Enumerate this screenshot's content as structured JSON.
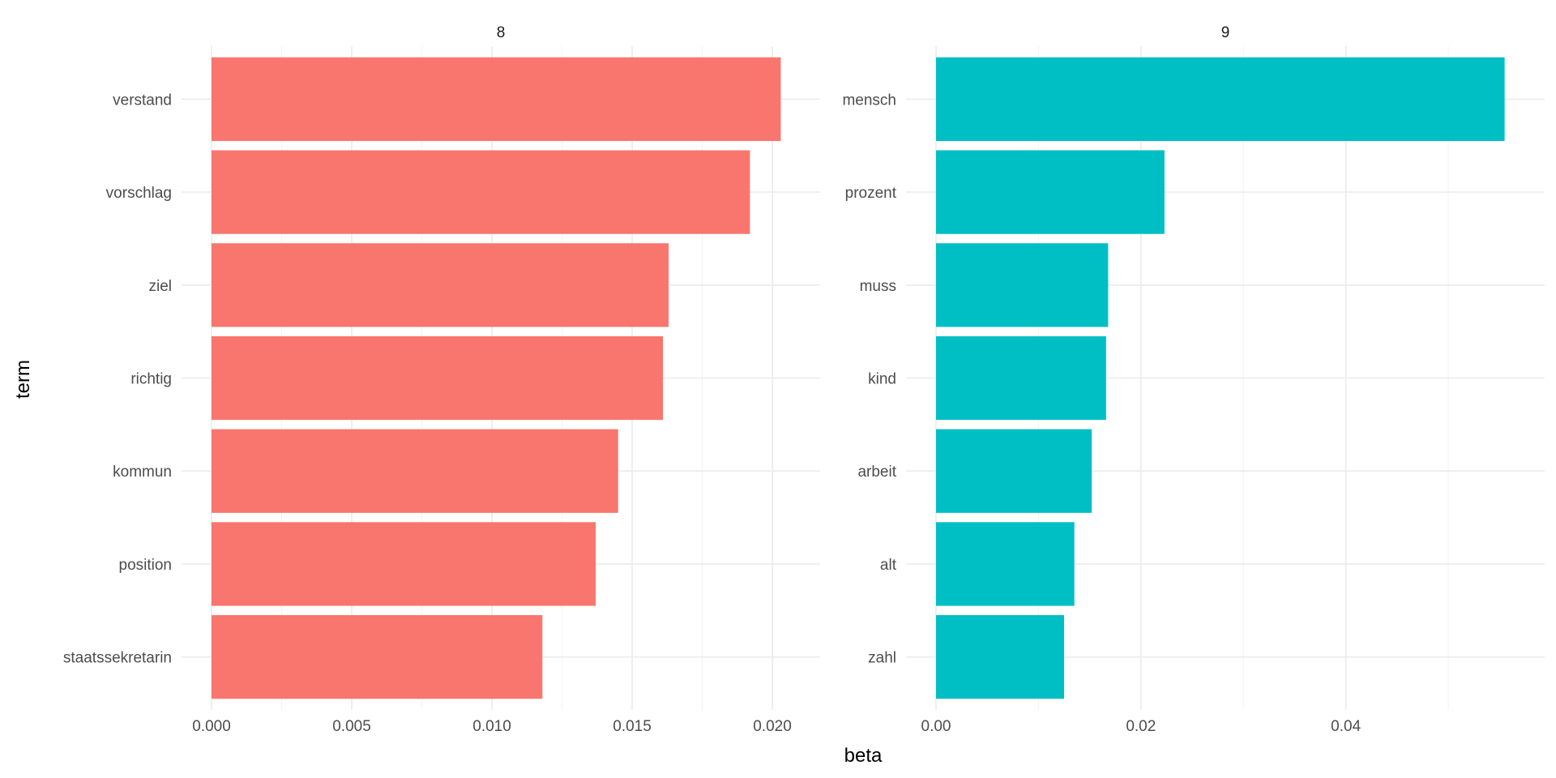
{
  "chart_data": {
    "type": "bar",
    "orientation": "horizontal",
    "xlabel": "beta",
    "ylabel": "term",
    "grid": true,
    "facets": [
      {
        "label": "8",
        "color": "#F8766D",
        "categories": [
          "verstand",
          "vorschlag",
          "ziel",
          "richtig",
          "kommun",
          "position",
          "staatssekretarin"
        ],
        "values": [
          0.0203,
          0.0192,
          0.0163,
          0.0161,
          0.0145,
          0.0137,
          0.0118
        ],
        "xlim": [
          0,
          0.0213
        ],
        "xticks": [
          0.0,
          0.005,
          0.01,
          0.015,
          0.02
        ],
        "xtick_labels": [
          "0.000",
          "0.005",
          "0.010",
          "0.015",
          "0.020"
        ]
      },
      {
        "label": "9",
        "color": "#00BFC4",
        "categories": [
          "mensch",
          "prozent",
          "muss",
          "kind",
          "arbeit",
          "alt",
          "zahl"
        ],
        "values": [
          0.0555,
          0.0223,
          0.0168,
          0.0166,
          0.0152,
          0.0135,
          0.0125
        ],
        "xlim": [
          0,
          0.0583
        ],
        "xticks": [
          0.0,
          0.02,
          0.04
        ],
        "xtick_labels": [
          "0.00",
          "0.02",
          "0.04"
        ]
      }
    ]
  }
}
